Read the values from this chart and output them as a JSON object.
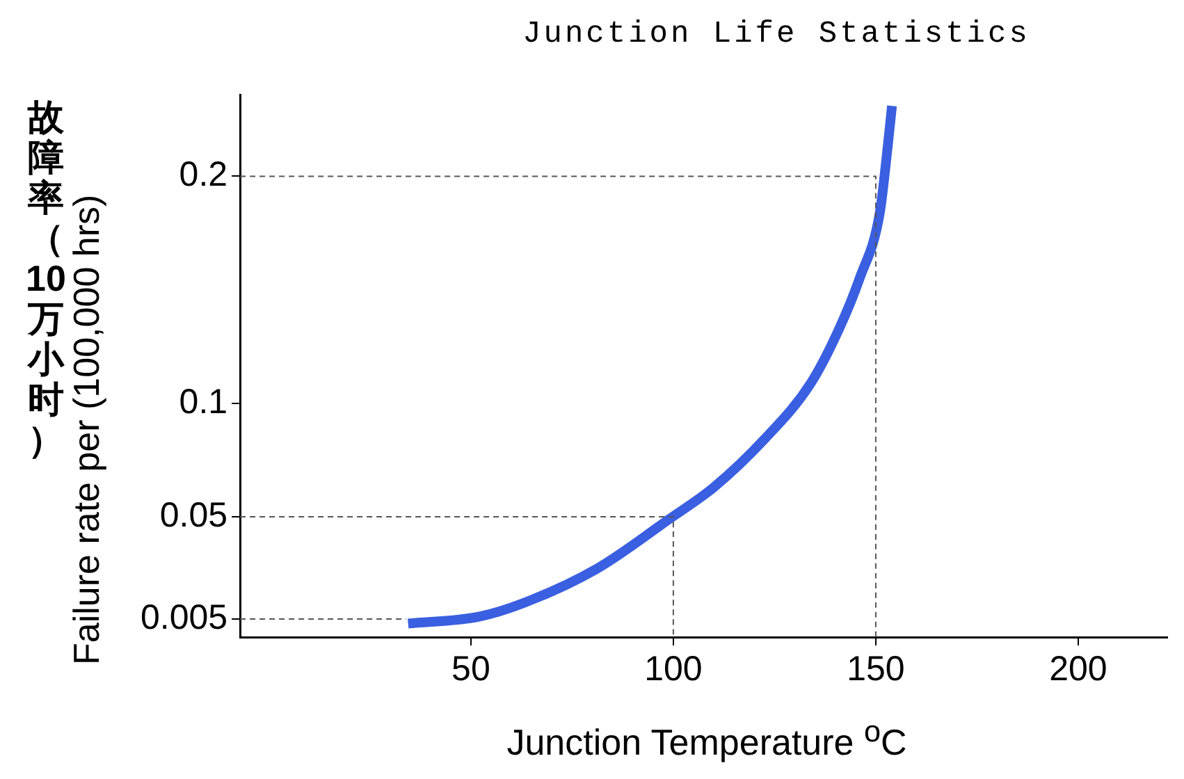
{
  "chart_data": {
    "type": "line",
    "title": "Junction Life Statistics",
    "xlabel": "Junction Temperature $^{o}$C",
    "ylabel": "故障率（10万小时）\nFailure rate per (100,000 hrs)",
    "xlim": [
      -7,
      222
    ],
    "ylim": [
      -0.003,
      0.236
    ],
    "xticks": [
      50,
      100,
      150,
      200
    ],
    "yticks": [
      0.005,
      0.05,
      0.1,
      0.2
    ],
    "grid": false,
    "legend": false,
    "marker": "none",
    "series": [
      {
        "color": "#3a5fe0",
        "line_style": "solid",
        "x": [
          34.5,
          52,
          63,
          81,
          99,
          110,
          122.4,
          134,
          141,
          146,
          151,
          153,
          154
        ],
        "values": [
          0.003,
          0.006,
          0.012,
          0.027,
          0.049,
          0.063,
          0.084,
          0.109,
          0.133,
          0.155,
          0.184,
          0.214,
          0.231
        ]
      },
      {
        "color": "#555555",
        "line_style": "dashed",
        "x": [
          -7,
          150,
          150
        ],
        "values": [
          0.2,
          0.2,
          -0.003
        ]
      },
      {
        "color": "#555555",
        "line_style": "dashed",
        "x": [
          -7,
          100,
          100
        ],
        "values": [
          0.05,
          0.05,
          -0.003
        ]
      },
      {
        "color": "#555555",
        "line_style": "dashed",
        "x": [
          -7,
          34
        ],
        "values": [
          0.005,
          0.005
        ]
      }
    ]
  }
}
